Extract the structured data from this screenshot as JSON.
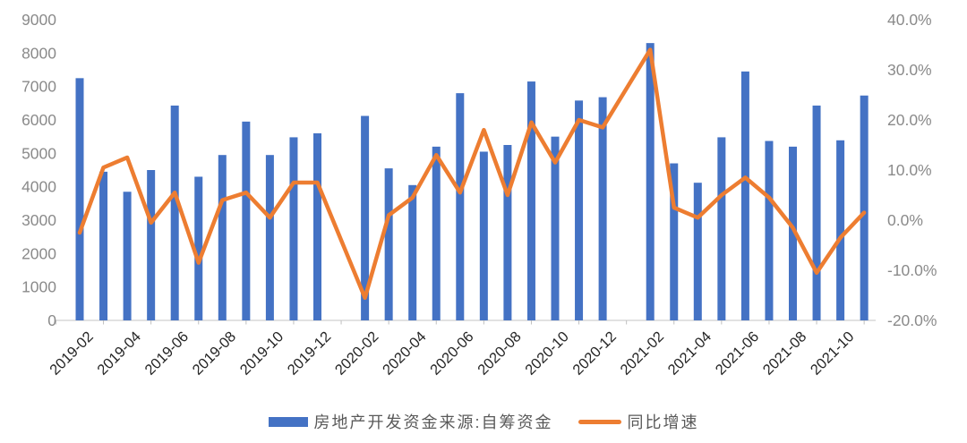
{
  "chart_data": {
    "type": "combo",
    "categories": [
      "2019-02",
      "2019-03",
      "2019-04",
      "2019-05",
      "2019-06",
      "2019-07",
      "2019-08",
      "2019-09",
      "2019-10",
      "2019-11",
      "2019-12",
      "2020-01",
      "2020-02",
      "2020-03",
      "2020-04",
      "2020-05",
      "2020-06",
      "2020-07",
      "2020-08",
      "2020-09",
      "2020-10",
      "2020-11",
      "2020-12",
      "2021-01",
      "2021-02",
      "2021-03",
      "2021-04",
      "2021-05",
      "2021-06",
      "2021-07",
      "2021-08",
      "2021-09",
      "2021-10",
      "2021-11"
    ],
    "series": [
      {
        "name": "房地产开发资金来源:自筹资金",
        "type": "bar",
        "axis": "left",
        "color": "#4472C4",
        "values": [
          7250,
          4450,
          3850,
          4500,
          6430,
          4300,
          4950,
          5950,
          4950,
          5480,
          5600,
          null,
          6120,
          4550,
          4050,
          5200,
          6800,
          5050,
          5250,
          7150,
          5500,
          6580,
          6680,
          null,
          8300,
          4700,
          4120,
          5480,
          7450,
          5370,
          5200,
          6430,
          5390,
          6730
        ]
      },
      {
        "name": "同比增速",
        "type": "line",
        "axis": "right",
        "color": "#ED7D31",
        "values": [
          -2.5,
          10.5,
          12.5,
          -0.5,
          5.5,
          -8.5,
          4.0,
          5.5,
          0.5,
          7.5,
          7.5,
          null,
          -15.5,
          1.0,
          4.5,
          13.0,
          5.5,
          18.0,
          5.0,
          19.5,
          11.5,
          20.0,
          18.5,
          null,
          34.0,
          2.5,
          0.5,
          5.0,
          8.5,
          4.5,
          -1.5,
          -10.5,
          -3.5,
          1.5
        ]
      }
    ],
    "x_tick_labels": [
      "2019-02",
      "2019-04",
      "2019-06",
      "2019-08",
      "2019-10",
      "2019-12",
      "2020-02",
      "2020-04",
      "2020-06",
      "2020-08",
      "2020-10",
      "2020-12",
      "2021-02",
      "2021-04",
      "2021-06",
      "2021-08",
      "2021-10"
    ],
    "left_axis": {
      "min": 0,
      "max": 9000,
      "step": 1000,
      "tick_labels": [
        "9000",
        "8000",
        "7000",
        "6000",
        "5000",
        "4000",
        "3000",
        "2000",
        "1000",
        "0"
      ]
    },
    "right_axis": {
      "min": -20,
      "max": 40,
      "step": 10,
      "tick_labels": [
        "40.0%",
        "30.0%",
        "20.0%",
        "10.0%",
        "0.0%",
        "-10.0%",
        "-20.0%"
      ]
    },
    "title": "",
    "grid": "off",
    "legend_position": "bottom"
  },
  "legend": {
    "bar_label": "房地产开发资金来源:自筹资金",
    "line_label": "同比增速"
  },
  "colors": {
    "bar": "#4472C4",
    "line": "#ED7D31",
    "axis_line": "#D9D9D9",
    "tick_mark": "#BFBFBF",
    "y_label": "#8A8A8A",
    "x_label": "#262626",
    "legend_text": "#595959",
    "background": "#FFFFFF"
  }
}
